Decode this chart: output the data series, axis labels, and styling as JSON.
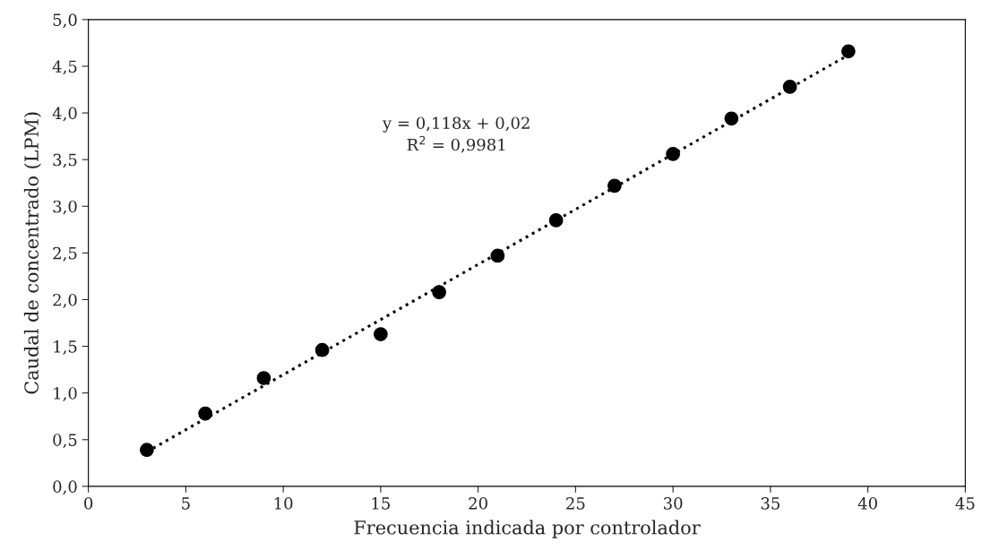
{
  "chart_data": {
    "type": "scatter",
    "xlabel": "Frecuencia indicada por controlador",
    "ylabel": "Caudal de concentrado (LPM)",
    "x": [
      3,
      6,
      9,
      12,
      15,
      18,
      21,
      24,
      27,
      30,
      33,
      36,
      39
    ],
    "series": [
      {
        "color": "#000000",
        "marker": "circle",
        "values": [
          0.39,
          0.78,
          1.16,
          1.46,
          1.63,
          2.08,
          2.47,
          2.85,
          3.22,
          3.56,
          3.94,
          4.28,
          4.66
        ]
      },
      {
        "type": "line",
        "color": "#000000",
        "line_style": "dotted",
        "marker": "none",
        "x": [
          3,
          39
        ],
        "values": [
          0.37,
          4.62
        ]
      }
    ],
    "annotations": [
      "y = 0,118x + 0,02",
      "R$^{2}$ = 0,9981"
    ],
    "xlim": [
      0,
      45
    ],
    "xticks": [
      0,
      5,
      10,
      15,
      20,
      25,
      30,
      35,
      40,
      45
    ],
    "ylim": [
      0,
      5
    ],
    "yticks": [
      {
        "value": 0,
        "label": "0,0"
      },
      {
        "value": 0.5,
        "label": "0,5"
      },
      {
        "value": 1,
        "label": "1,0"
      },
      {
        "value": 1.5,
        "label": "1,5"
      },
      {
        "value": 2,
        "label": "2,0"
      },
      {
        "value": 2.5,
        "label": "2,5"
      },
      {
        "value": 3,
        "label": "3,0"
      },
      {
        "value": 3.5,
        "label": "3,5"
      },
      {
        "value": 4,
        "label": "4,0"
      },
      {
        "value": 4.5,
        "label": "4,5"
      },
      {
        "value": 5,
        "label": "5,0"
      }
    ],
    "grid": false,
    "legend": false
  }
}
